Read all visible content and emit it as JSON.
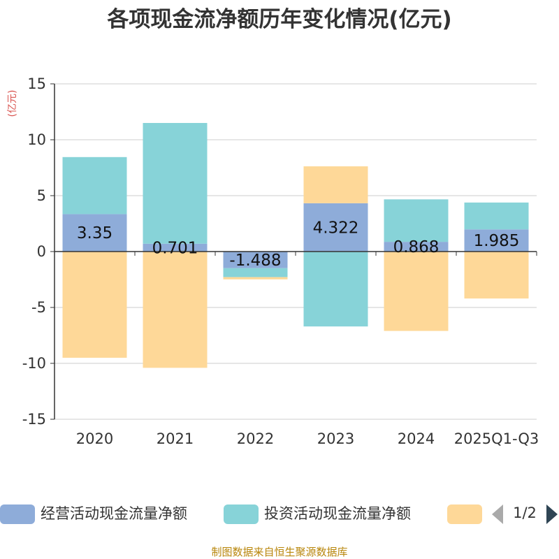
{
  "chart_data": {
    "type": "bar",
    "stacked": true,
    "title": "各项现金流净额历年变化情况(亿元)",
    "ylabel": "(亿元)",
    "xlabel": "",
    "ylim": [
      -15,
      15
    ],
    "yticks": [
      15,
      10,
      5,
      0,
      -5,
      -10,
      -15
    ],
    "categories": [
      "2020",
      "2021",
      "2022",
      "2023",
      "2024",
      "2025Q1-Q3"
    ],
    "series": [
      {
        "name": "经营活动现金流量净额",
        "color": "#8eacd9",
        "values": [
          3.35,
          0.701,
          -1.488,
          4.322,
          0.868,
          1.985
        ],
        "labels": [
          "3.35",
          "0.701",
          "-1.488",
          "4.322",
          "0.868",
          "1.985"
        ]
      },
      {
        "name": "投资活动现金流量净额",
        "color": "#87d3d8",
        "values": [
          5.1,
          10.8,
          -0.8,
          -6.7,
          3.8,
          2.4
        ]
      },
      {
        "name": "",
        "color": "#fed898",
        "values": [
          -9.5,
          -10.4,
          -0.2,
          3.3,
          -7.1,
          -4.2
        ]
      }
    ],
    "legend_position": "bottom",
    "legend_page": "1/2"
  },
  "source_note": "制图数据来自恒生聚源数据库"
}
